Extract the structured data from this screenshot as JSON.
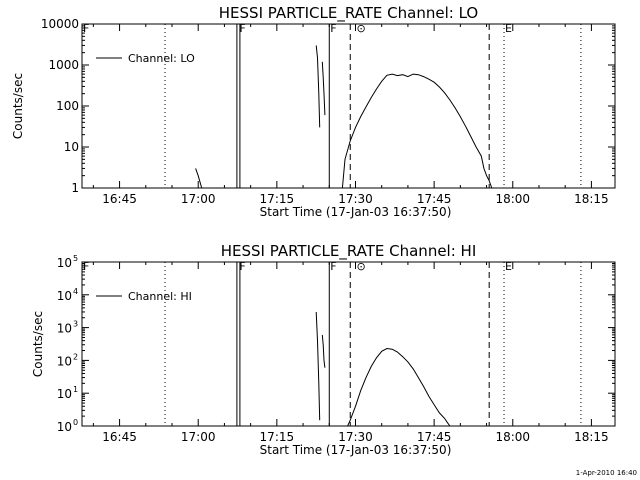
{
  "footer": {
    "timestamp": "1-Apr-2010 16:40"
  },
  "chart_data": [
    {
      "type": "line",
      "title": "HESSI PARTICLE_RATE Channel: LO",
      "xlabel": "Start Time (17-Jan-03 16:37:50)",
      "ylabel": "Counts/sec",
      "yscale": "log",
      "ylim": [
        1,
        10000
      ],
      "x_ticks": [
        "16:45",
        "17:00",
        "17:15",
        "17:30",
        "17:45",
        "18:00",
        "18:15"
      ],
      "y_ticks": [
        {
          "value": 1,
          "label": "1"
        },
        {
          "value": 10,
          "label": "10"
        },
        {
          "value": 100,
          "label": "100"
        },
        {
          "value": 1000,
          "label": "1000"
        },
        {
          "value": 10000,
          "label": "10000"
        }
      ],
      "legend": {
        "position": "top-left",
        "entries": [
          "Channel: LO"
        ]
      },
      "markers": [
        {
          "time": "16:37:50",
          "label": "F",
          "style": "none"
        },
        {
          "time": "17:07:40",
          "label": "F",
          "style": "double-solid"
        },
        {
          "time": "17:25:00",
          "label": "F",
          "style": "solid"
        },
        {
          "time": "17:29:00",
          "label": "",
          "style": "dashed"
        },
        {
          "time": "17:30:00",
          "label": "⊙",
          "style": "none"
        },
        {
          "time": "17:55:30",
          "label": "",
          "style": "dashed"
        },
        {
          "time": "17:58:20",
          "label": "E",
          "style": "dotted"
        },
        {
          "time": "16:53:40",
          "label": "",
          "style": "dotted"
        },
        {
          "time": "18:13:00",
          "label": "",
          "style": "dotted"
        }
      ],
      "series": [
        {
          "name": "Channel: LO",
          "segments": [
            {
              "x": [
                "16:59:30",
                "17:00:00",
                "17:00:40"
              ],
              "y": [
                3,
                2,
                1
              ]
            },
            {
              "x": [
                "17:22:30",
                "17:22:45",
                "17:23:00",
                "17:23:10"
              ],
              "y": [
                3000,
                1500,
                200,
                30
              ]
            },
            {
              "x": [
                "17:23:40",
                "17:23:50",
                "17:24:00",
                "17:24:10"
              ],
              "y": [
                1200,
                500,
                200,
                60
              ]
            },
            {
              "x": [
                "17:27:30",
                "17:28:00",
                "17:29:00",
                "17:30:00",
                "17:31:00",
                "17:32:00",
                "17:33:00",
                "17:34:00",
                "17:35:00",
                "17:36:00",
                "17:37:00",
                "17:38:00",
                "17:39:00",
                "17:40:00",
                "17:41:00",
                "17:42:00",
                "17:43:00",
                "17:44:00",
                "17:45:00",
                "17:46:00",
                "17:47:00",
                "17:48:00",
                "17:49:00",
                "17:50:00",
                "17:51:00",
                "17:52:00",
                "17:53:00",
                "17:54:00",
                "17:54:30",
                "17:55:00",
                "17:55:30",
                "17:56:00"
              ],
              "y": [
                1,
                5,
                14,
                30,
                55,
                95,
                160,
                260,
                400,
                560,
                600,
                550,
                580,
                520,
                600,
                580,
                520,
                450,
                380,
                290,
                210,
                140,
                90,
                55,
                32,
                18,
                10,
                6,
                3,
                2,
                1.5,
                1
              ]
            }
          ]
        }
      ]
    },
    {
      "type": "line",
      "title": "HESSI PARTICLE_RATE Channel: HI",
      "xlabel": "Start Time (17-Jan-03 16:37:50)",
      "ylabel": "Counts/sec",
      "yscale": "log",
      "ylim": [
        1,
        100000
      ],
      "x_ticks": [
        "16:45",
        "17:00",
        "17:15",
        "17:30",
        "17:45",
        "18:00",
        "18:15"
      ],
      "y_ticks": [
        {
          "value": 1,
          "base": "10",
          "exp": "0"
        },
        {
          "value": 10,
          "base": "10",
          "exp": "1"
        },
        {
          "value": 100,
          "base": "10",
          "exp": "2"
        },
        {
          "value": 1000,
          "base": "10",
          "exp": "3"
        },
        {
          "value": 10000,
          "base": "10",
          "exp": "4"
        },
        {
          "value": 100000,
          "base": "10",
          "exp": "5"
        }
      ],
      "legend": {
        "position": "top-left",
        "entries": [
          "Channel: HI"
        ]
      },
      "markers": [
        {
          "time": "16:37:50",
          "label": "F",
          "style": "none"
        },
        {
          "time": "17:07:40",
          "label": "F",
          "style": "double-solid"
        },
        {
          "time": "17:25:00",
          "label": "F",
          "style": "solid"
        },
        {
          "time": "17:29:00",
          "label": "",
          "style": "dashed"
        },
        {
          "time": "17:30:00",
          "label": "⊙",
          "style": "none"
        },
        {
          "time": "17:55:30",
          "label": "",
          "style": "dashed"
        },
        {
          "time": "17:58:20",
          "label": "E",
          "style": "dotted"
        },
        {
          "time": "16:53:40",
          "label": "",
          "style": "dotted"
        },
        {
          "time": "18:13:00",
          "label": "",
          "style": "dotted"
        }
      ],
      "series": [
        {
          "name": "Channel: HI",
          "segments": [
            {
              "x": [
                "17:22:30",
                "17:22:45",
                "17:23:00",
                "17:23:10"
              ],
              "y": [
                3000,
                400,
                20,
                1.5
              ]
            },
            {
              "x": [
                "17:23:40",
                "17:23:50",
                "17:24:00",
                "17:24:10"
              ],
              "y": [
                600,
                300,
                100,
                60
              ]
            },
            {
              "x": [
                "17:28:30",
                "17:29:00",
                "17:30:00",
                "17:31:00",
                "17:32:00",
                "17:33:00",
                "17:34:00",
                "17:35:00",
                "17:36:00",
                "17:37:00",
                "17:38:00",
                "17:39:00",
                "17:40:00",
                "17:41:00",
                "17:42:00",
                "17:43:00",
                "17:44:00",
                "17:45:00",
                "17:46:00",
                "17:47:00",
                "17:47:30",
                "17:48:00"
              ],
              "y": [
                1,
                1.5,
                4,
                12,
                30,
                65,
                120,
                190,
                230,
                220,
                180,
                130,
                90,
                55,
                30,
                16,
                8,
                4.5,
                2.5,
                1.7,
                1.3,
                1
              ]
            }
          ]
        }
      ]
    }
  ]
}
